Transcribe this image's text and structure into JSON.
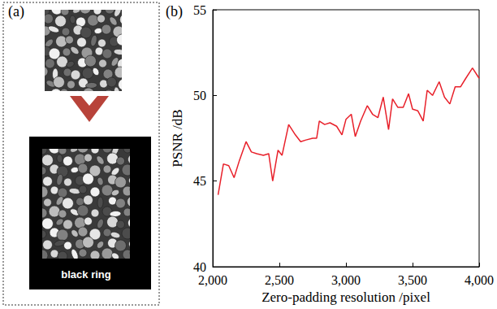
{
  "panels": {
    "a": {
      "label": "(a)",
      "annotation": "black ring"
    },
    "b": {
      "label": "(b)"
    }
  },
  "chart_data": {
    "type": "line",
    "x_label": "Zero-padding resolution /pixel",
    "y_label": "PSNR /dB",
    "x": [
      2040,
      2080,
      2120,
      2160,
      2200,
      2250,
      2290,
      2330,
      2380,
      2420,
      2450,
      2490,
      2520,
      2570,
      2620,
      2660,
      2700,
      2750,
      2780,
      2800,
      2840,
      2880,
      2930,
      2970,
      3000,
      3040,
      3070,
      3110,
      3160,
      3200,
      3240,
      3280,
      3320,
      3350,
      3390,
      3430,
      3470,
      3500,
      3540,
      3580,
      3610,
      3650,
      3700,
      3740,
      3780,
      3820,
      3860,
      3900,
      3950,
      4000
    ],
    "values": [
      44.2,
      46.0,
      45.9,
      45.2,
      46.2,
      47.3,
      46.7,
      46.6,
      46.5,
      46.6,
      45.0,
      46.8,
      46.5,
      48.3,
      47.7,
      47.3,
      47.4,
      47.5,
      47.5,
      48.5,
      48.3,
      48.4,
      48.2,
      47.7,
      48.6,
      48.9,
      47.6,
      48.5,
      49.4,
      48.9,
      48.7,
      49.9,
      48.0,
      49.8,
      49.3,
      49.3,
      50.1,
      49.2,
      49.1,
      48.5,
      50.3,
      50.0,
      50.8,
      49.9,
      49.5,
      50.5,
      50.5,
      51.0,
      51.6,
      51.0
    ],
    "color": "#e8202a",
    "xlim": [
      2000,
      4000
    ],
    "xticks": [
      2000,
      2500,
      3000,
      3500,
      4000
    ],
    "ylim": [
      40,
      55
    ],
    "yticks": [
      40,
      45,
      50,
      55
    ],
    "grid": false
  }
}
